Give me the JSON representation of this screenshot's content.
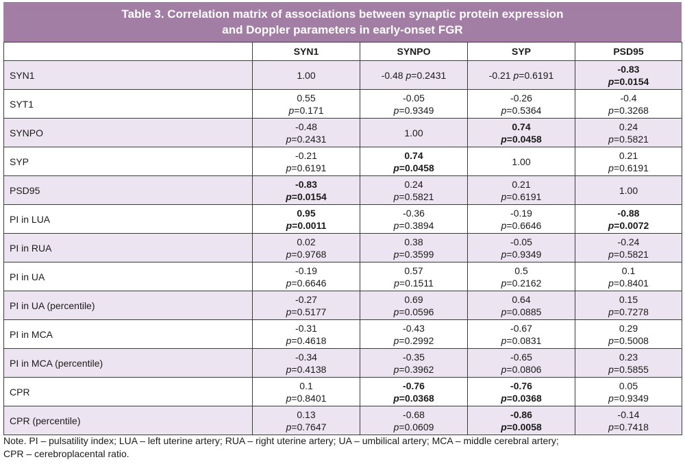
{
  "title": {
    "line1": "Table 3. Correlation matrix of associations between synaptic protein expression",
    "line2": "and Doppler parameters in early-onset FGR"
  },
  "colors": {
    "header_bg": "#a27ea5",
    "row_shade": "#ece4f0",
    "border": "#3a3a3a"
  },
  "columns": [
    "",
    "SYN1",
    "SYNPO",
    "SYP",
    "PSD95"
  ],
  "p_prefix": "p",
  "rows": [
    {
      "label": "SYN1",
      "cells": [
        {
          "r": "1.00",
          "p": "",
          "bold": false
        },
        {
          "r": "-0.48",
          "p": "=0.2431",
          "bold": false,
          "inline": true
        },
        {
          "r": "-0.21",
          "p": "=0.6191",
          "bold": false,
          "inline": true
        },
        {
          "r": "-0.83",
          "p": "=0.0154",
          "bold": true
        }
      ]
    },
    {
      "label": "SYT1",
      "cells": [
        {
          "r": "0.55",
          "p": "=0.171",
          "bold": false
        },
        {
          "r": "-0.05",
          "p": "=0.9349",
          "bold": false
        },
        {
          "r": "-0.26",
          "p": "=0.5364",
          "bold": false
        },
        {
          "r": "-0.4",
          "p": "=0.3268",
          "bold": false
        }
      ]
    },
    {
      "label": "SYNPO",
      "cells": [
        {
          "r": "-0.48",
          "p": "=0.2431",
          "bold": false
        },
        {
          "r": "1.00",
          "p": "",
          "bold": false
        },
        {
          "r": "0.74",
          "p": "=0.0458",
          "bold": true
        },
        {
          "r": "0.24",
          "p": "=0.5821",
          "bold": false
        }
      ]
    },
    {
      "label": "SYP",
      "cells": [
        {
          "r": "-0.21",
          "p": "=0.6191",
          "bold": false
        },
        {
          "r": "0.74",
          "p": "=0.0458",
          "bold": true
        },
        {
          "r": "1.00",
          "p": "",
          "bold": false
        },
        {
          "r": "0.21",
          "p": "=0.6191",
          "bold": false
        }
      ]
    },
    {
      "label": "PSD95",
      "cells": [
        {
          "r": "-0.83",
          "p": "=0.0154",
          "bold": true
        },
        {
          "r": "0.24",
          "p": "=0.5821",
          "bold": false
        },
        {
          "r": "0.21",
          "p": "=0.6191",
          "bold": false
        },
        {
          "r": "1.00",
          "p": "",
          "bold": false
        }
      ]
    },
    {
      "label": "PI in LUA",
      "cells": [
        {
          "r": "0.95",
          "p": "=0.0011",
          "bold": true
        },
        {
          "r": "-0.36",
          "p": "=0.3894",
          "bold": false
        },
        {
          "r": "-0.19",
          "p": "=0.6646",
          "bold": false
        },
        {
          "r": "-0.88",
          "p": "=0.0072",
          "bold": true
        }
      ]
    },
    {
      "label": "PI in RUA",
      "cells": [
        {
          "r": "0.02",
          "p": "=0.9768",
          "bold": false
        },
        {
          "r": "0.38",
          "p": "=0.3599",
          "bold": false
        },
        {
          "r": "-0.05",
          "p": "=0.9349",
          "bold": false
        },
        {
          "r": "-0.24",
          "p": "=0.5821",
          "bold": false
        }
      ]
    },
    {
      "label": "PI in UA",
      "cells": [
        {
          "r": "-0.19",
          "p": "=0.6646",
          "bold": false
        },
        {
          "r": "0.57",
          "p": "=0.1511",
          "bold": false
        },
        {
          "r": "0.5",
          "p": "=0.2162",
          "bold": false
        },
        {
          "r": "0.1",
          "p": "=0.8401",
          "bold": false
        }
      ]
    },
    {
      "label": "PI in UA (percentile)",
      "cells": [
        {
          "r": "-0.27",
          "p": "=0.5177",
          "bold": false
        },
        {
          "r": "0.69",
          "p": "=0.0596",
          "bold": false
        },
        {
          "r": "0.64",
          "p": "=0.0885",
          "bold": false
        },
        {
          "r": "0.15",
          "p": "=0.7278",
          "bold": false
        }
      ]
    },
    {
      "label": "PI in MCA",
      "cells": [
        {
          "r": "-0.31",
          "p": "=0.4618",
          "bold": false
        },
        {
          "r": "-0.43",
          "p": "=0.2992",
          "bold": false
        },
        {
          "r": "-0.67",
          "p": "=0.0831",
          "bold": false
        },
        {
          "r": "0.29",
          "p": "=0.5008",
          "bold": false
        }
      ]
    },
    {
      "label": "PI in MCA (percentile)",
      "cells": [
        {
          "r": "-0.34",
          "p": "=0.4138",
          "bold": false
        },
        {
          "r": "-0.35",
          "p": "=0.3962",
          "bold": false
        },
        {
          "r": "-0.65",
          "p": "=0.0806",
          "bold": false
        },
        {
          "r": "0.23",
          "p": "=0.5855",
          "bold": false
        }
      ]
    },
    {
      "label": "CPR",
      "cells": [
        {
          "r": "0.1",
          "p": "=0.8401",
          "bold": false
        },
        {
          "r": "-0.76",
          "p": "=0.0368",
          "bold": true
        },
        {
          "r": "-0.76",
          "p": "=0.0368",
          "bold": true
        },
        {
          "r": "0.05",
          "p": "=0.9349",
          "bold": false
        }
      ]
    },
    {
      "label": "CPR (percentile)",
      "cells": [
        {
          "r": "0.13",
          "p": "=0.7647",
          "bold": false
        },
        {
          "r": "-0.68",
          "p": "=0.0609",
          "bold": false
        },
        {
          "r": "-0.86",
          "p": "=0.0058",
          "bold": true
        },
        {
          "r": "-0.14",
          "p": "=0.7418",
          "bold": false
        }
      ]
    }
  ],
  "note": {
    "line1": "Note. PI – pulsatility index; LUA – left uterine artery; RUA – right uterine artery; UA – umbilical artery; MCA – middle cerebral artery;",
    "line2": "CPR – cerebroplacental ratio."
  }
}
